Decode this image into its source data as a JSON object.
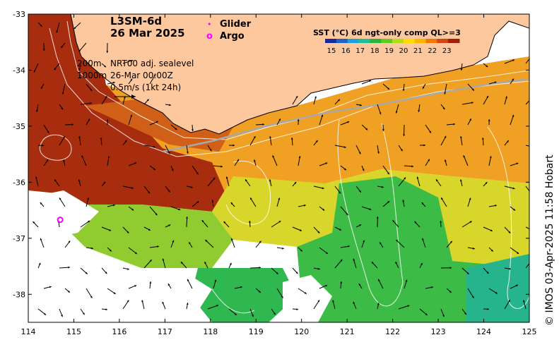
{
  "title": {
    "product": "L3SM-6d",
    "date": "26 Mar 2025"
  },
  "legend": {
    "glider": {
      "symbol": "•",
      "label": "Glider",
      "color": "#ff00ff"
    },
    "argo": {
      "symbol": "o",
      "label": "Argo",
      "color": "#ff00ff"
    }
  },
  "colorbar": {
    "title": "SST (°C) 6d ngt-only comp QL>=3",
    "ticks": [
      "15",
      "16",
      "17",
      "18",
      "19",
      "20",
      "21",
      "22",
      "23"
    ],
    "colors": [
      "#1a2a9a",
      "#1e64c8",
      "#1ea0dc",
      "#1ebe9a",
      "#28b43c",
      "#64c828",
      "#b4dc14",
      "#ffdc00",
      "#ffb400",
      "#f07800",
      "#d24614",
      "#a01e0a"
    ]
  },
  "annotations": {
    "isobaths": [
      "200m",
      "1000m"
    ],
    "currents": "NRT00 adj. sealevel",
    "time": "26-Mar 00:00Z",
    "scale": "0.5m/s (1kt 24h)"
  },
  "axes": {
    "x_ticks": [
      "114",
      "115",
      "116",
      "117",
      "118",
      "119",
      "120",
      "121",
      "122",
      "123",
      "124",
      "125"
    ],
    "y_ticks": [
      "-33",
      "-34",
      "-35",
      "-36",
      "-37",
      "-38"
    ],
    "lon_range": [
      114,
      125
    ],
    "lat_range": [
      -38.5,
      -33
    ]
  },
  "markers": {
    "argo_float": {
      "lon": 114.7,
      "lat": -36.67
    }
  },
  "credit": "© IMOS 03-Apr-2025 11:58 Hobart",
  "colors": {
    "land": "#fdc89e",
    "coast": "#000000",
    "contour": "#ffffff",
    "marker": "#ff00ff"
  }
}
